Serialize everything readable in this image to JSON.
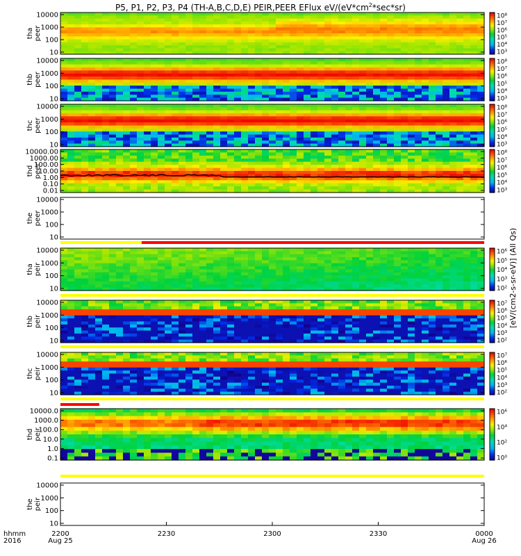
{
  "title": {
    "main": "P5, P1, P2, P3, P4 (TH-A,B,C,D,E) PEIR,PEER EFlux eV/(eV*cm",
    "sup": "2",
    "tail": "*sec*sr)"
  },
  "chart_data": {
    "type": "heatmap",
    "colorbar_label": "[eV/(cm2-s-sr-eV)] (All Qs)",
    "xaxis": {
      "label_top": "hhmm",
      "label_bottom": "2016",
      "ticks": [
        {
          "t": 0,
          "label": "2200",
          "sub": "Aug 25"
        },
        {
          "t": 30,
          "label": "2230",
          "sub": ""
        },
        {
          "t": 60,
          "label": "2300",
          "sub": ""
        },
        {
          "t": 90,
          "label": "2330",
          "sub": ""
        },
        {
          "t": 120,
          "label": "0000",
          "sub": "Aug 26"
        }
      ],
      "range_minutes": [
        0,
        120
      ]
    },
    "panels": [
      {
        "id": "tha-peer",
        "ylabel": [
          "tha",
          "peer"
        ],
        "species": "electron",
        "scale": "log",
        "yticks": [
          "10000",
          "1000",
          "100",
          "10"
        ],
        "cbar": [
          "10⁸",
          "10⁷",
          "10⁶",
          "10⁵",
          "10⁴",
          "10³"
        ],
        "has_data": true,
        "style": "tha_e"
      },
      {
        "id": "thb-peer",
        "ylabel": [
          "thb",
          "peer"
        ],
        "species": "electron",
        "scale": "log",
        "yticks": [
          "10000",
          "1000",
          "100",
          "10"
        ],
        "cbar": [
          "10⁸",
          "10⁷",
          "10⁶",
          "10⁵",
          "10⁴",
          "10³"
        ],
        "has_data": true,
        "style": "thbc_e"
      },
      {
        "id": "thc-peer",
        "ylabel": [
          "thc",
          "peer"
        ],
        "species": "electron",
        "scale": "log",
        "yticks": [
          "10000",
          "1000",
          "100",
          "10"
        ],
        "cbar": [
          "10⁸",
          "10⁷",
          "10⁶",
          "10⁵",
          "10⁴",
          "10³"
        ],
        "has_data": true,
        "style": "thbc_e"
      },
      {
        "id": "thd-peer",
        "ylabel": [
          "thd",
          "peer"
        ],
        "species": "electron",
        "scale": "log",
        "yticks": [
          "10000.00",
          "1000.00",
          "100.00",
          "10.00",
          "1.00",
          "0.10",
          "0.01"
        ],
        "cbar": [
          "10⁸",
          "10⁷",
          "10⁶",
          "10⁵",
          "10⁴",
          "10³"
        ],
        "has_data": true,
        "style": "thd_e"
      },
      {
        "id": "the-peer",
        "ylabel": [
          "the",
          "peer"
        ],
        "species": "electron",
        "scale": "log",
        "yticks": [
          "10000",
          "1000",
          "100",
          "10"
        ],
        "cbar": [],
        "has_data": false
      },
      {
        "id": "tha-peir",
        "ylabel": [
          "tha",
          "peir"
        ],
        "species": "ion",
        "scale": "log",
        "yticks": [
          "10000",
          "1000",
          "100",
          "10"
        ],
        "cbar": [
          "10⁶",
          "10⁵",
          "10⁴",
          "10³",
          "10²"
        ],
        "has_data": true,
        "style": "tha_i"
      },
      {
        "id": "thb-peir",
        "ylabel": [
          "thb",
          "peir"
        ],
        "species": "ion",
        "scale": "log",
        "yticks": [
          "10000",
          "1000",
          "100",
          "10"
        ],
        "cbar": [
          "10⁷",
          "10⁶",
          "10⁵",
          "10⁴",
          "10³",
          "10²"
        ],
        "has_data": true,
        "style": "thbc_i"
      },
      {
        "id": "thc-peir",
        "ylabel": [
          "thc",
          "peir"
        ],
        "species": "ion",
        "scale": "log",
        "yticks": [
          "10000",
          "1000",
          "100",
          "10"
        ],
        "cbar": [
          "10⁷",
          "10⁶",
          "10⁵",
          "10⁴",
          "10³",
          "10²"
        ],
        "has_data": true,
        "style": "thbc_i"
      },
      {
        "id": "thd-peir",
        "ylabel": [
          "thd",
          "peir"
        ],
        "species": "ion",
        "scale": "log",
        "yticks": [
          "10000.0",
          "1000.0",
          "100.0",
          "10.0",
          "1.0",
          "0.1"
        ],
        "cbar": [
          "10⁶",
          "10⁴",
          "10²",
          "10⁰"
        ],
        "has_data": true,
        "style": "thd_i"
      },
      {
        "id": "the-peir",
        "ylabel": [
          "the",
          "peir"
        ],
        "species": "ion",
        "scale": "log",
        "yticks": [
          "10000",
          "1000",
          "100",
          "10"
        ],
        "cbar": [],
        "has_data": false
      }
    ],
    "status_bars": [
      {
        "after_panel": "the-peer",
        "segments": [
          {
            "from": 0,
            "to": 120,
            "color": "#ffff00"
          },
          {
            "from": 23,
            "to": 120,
            "color": "#ff0000"
          }
        ]
      },
      {
        "after_panel": "tha-peir",
        "segments": [
          {
            "from": 0,
            "to": 120,
            "color": "#ffff00"
          }
        ]
      },
      {
        "after_panel": "thb-peir",
        "segments": [
          {
            "from": 0,
            "to": 120,
            "color": "#ffff00"
          }
        ]
      },
      {
        "after_panel": "thc-peir",
        "segments": [
          {
            "from": 0,
            "to": 120,
            "color": "#ffff00"
          }
        ]
      },
      {
        "after_panel": "thd-peir",
        "segments": [
          {
            "from": 0,
            "to": 120,
            "color": "#ffff00"
          }
        ]
      }
    ],
    "red_bar_above_thd_peir": {
      "from": 0,
      "to": 11,
      "color": "#ff0000"
    }
  }
}
